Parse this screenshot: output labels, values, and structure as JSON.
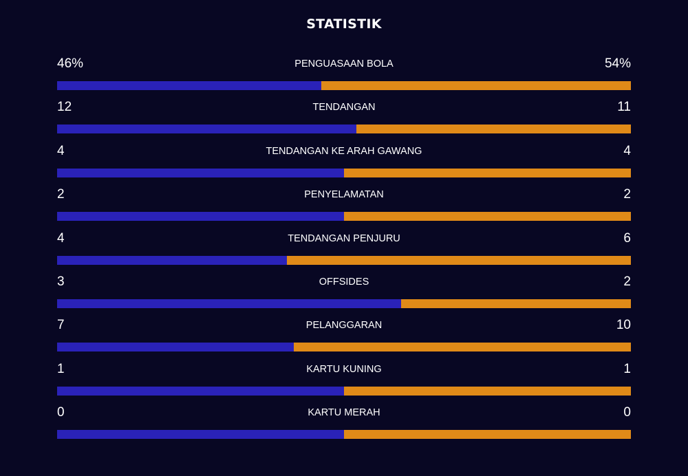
{
  "title": "STATISTIK",
  "colors": {
    "background": "#080723",
    "home": "#2a22b8",
    "away": "#e08a18"
  },
  "stats": [
    {
      "label": "PENGUASAAN BOLA",
      "home": "46%",
      "away": "54%",
      "home_share": 0.46
    },
    {
      "label": "TENDANGAN",
      "home": "12",
      "away": "11",
      "home_share": 0.522
    },
    {
      "label": "TENDANGAN KE ARAH GAWANG",
      "home": "4",
      "away": "4",
      "home_share": 0.5
    },
    {
      "label": "PENYELAMATAN",
      "home": "2",
      "away": "2",
      "home_share": 0.5
    },
    {
      "label": "TENDANGAN PENJURU",
      "home": "4",
      "away": "6",
      "home_share": 0.4
    },
    {
      "label": "OFFSIDES",
      "home": "3",
      "away": "2",
      "home_share": 0.6
    },
    {
      "label": "PELANGGARAN",
      "home": "7",
      "away": "10",
      "home_share": 0.412
    },
    {
      "label": "KARTU KUNING",
      "home": "1",
      "away": "1",
      "home_share": 0.5
    },
    {
      "label": "KARTU MERAH",
      "home": "0",
      "away": "0",
      "home_share": 0.5
    }
  ]
}
